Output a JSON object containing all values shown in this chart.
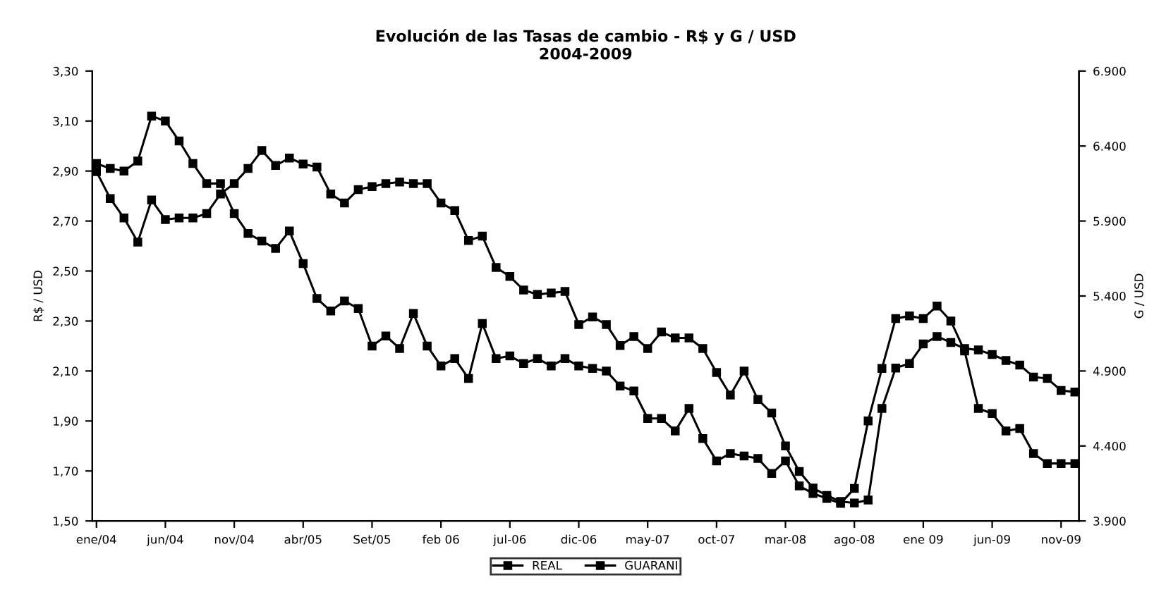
{
  "chart_data": {
    "type": "line",
    "title": "Evolución de las Tasas de cambio - R$ y G / USD\n2004-2009",
    "categories": [
      "ene/04",
      null,
      null,
      null,
      null,
      "jun/04",
      null,
      null,
      null,
      null,
      "nov/04",
      null,
      null,
      null,
      null,
      "abr/05",
      null,
      null,
      null,
      null,
      "Set/05",
      null,
      null,
      null,
      null,
      "feb 06",
      null,
      null,
      null,
      null,
      "jul-06",
      null,
      null,
      null,
      null,
      "dic-06",
      null,
      null,
      null,
      null,
      "may-07",
      null,
      null,
      null,
      null,
      "oct-07",
      null,
      null,
      null,
      null,
      "mar-08",
      null,
      null,
      null,
      null,
      "ago-08",
      null,
      null,
      null,
      null,
      "ene 09",
      null,
      null,
      null,
      null,
      "jun-09",
      null,
      null,
      null,
      null,
      "nov-09",
      null
    ],
    "series": [
      {
        "name": "REAL",
        "color": "#000000",
        "values": [
          2.93,
          2.91,
          2.9,
          2.94,
          3.12,
          3.1,
          3.02,
          2.93,
          2.85,
          2.85,
          2.73,
          2.65,
          2.62,
          2.59,
          2.66,
          2.53,
          2.39,
          2.34,
          2.38,
          2.35,
          2.2,
          2.24,
          2.19,
          2.33,
          2.2,
          2.12,
          2.15,
          2.07,
          2.29,
          2.15,
          2.16,
          2.13,
          2.15,
          2.12,
          2.15,
          2.12,
          2.11,
          2.1,
          2.04,
          2.02,
          1.91,
          1.91,
          1.86,
          1.95,
          1.83,
          1.74,
          1.77,
          1.76,
          1.75,
          1.69,
          1.74,
          1.64,
          1.61,
          1.59,
          1.57,
          1.63,
          1.9,
          2.11,
          2.31,
          2.32,
          2.31,
          2.36,
          2.3,
          2.18,
          1.95,
          1.93,
          1.86,
          1.87,
          1.77,
          1.73,
          1.73,
          1.73
        ]
      },
      {
        "name": "GUARANI",
        "color": "#000000",
        "axis": "y2",
        "values": [
          6230,
          6050,
          5920,
          5760,
          6040,
          5910,
          5920,
          5920,
          5950,
          6080,
          6150,
          6250,
          6370,
          6270,
          6320,
          6280,
          6260,
          6080,
          6020,
          6110,
          6130,
          6150,
          6160,
          6150,
          6150,
          6020,
          5970,
          5770,
          5800,
          5590,
          5530,
          5440,
          5410,
          5420,
          5430,
          5210,
          5260,
          5210,
          5070,
          5130,
          5050,
          5160,
          5120,
          5120,
          5050,
          4890,
          4740,
          4900,
          4710,
          4620,
          4400,
          4230,
          4120,
          4070,
          4030,
          4020,
          4040,
          4650,
          4920,
          4950,
          5080,
          5130,
          5090,
          5050,
          5040,
          5010,
          4970,
          4940,
          4860,
          4850,
          4770,
          4760
        ]
      }
    ],
    "ylabel": "R$ / USD",
    "y2label": "G / USD",
    "ylim": [
      1.5,
      3.3
    ],
    "yticks": [
      {
        "value": 1.5,
        "label": "1,50"
      },
      {
        "value": 1.7,
        "label": "1,70"
      },
      {
        "value": 1.9,
        "label": "1,90"
      },
      {
        "value": 2.1,
        "label": "2,10"
      },
      {
        "value": 2.3,
        "label": "2,30"
      },
      {
        "value": 2.5,
        "label": "2,50"
      },
      {
        "value": 2.7,
        "label": "2,70"
      },
      {
        "value": 2.9,
        "label": "2,90"
      },
      {
        "value": 3.1,
        "label": "3,10"
      },
      {
        "value": 3.3,
        "label": "3,30"
      }
    ],
    "y2lim": [
      3900,
      6900
    ],
    "y2ticks": [
      {
        "value": 3900,
        "label": "3.900"
      },
      {
        "value": 4400,
        "label": "4.400"
      },
      {
        "value": 4900,
        "label": "4.900"
      },
      {
        "value": 5400,
        "label": "5.400"
      },
      {
        "value": 5900,
        "label": "5.900"
      },
      {
        "value": 6400,
        "label": "6.400"
      },
      {
        "value": 6900,
        "label": "6.900"
      }
    ],
    "marker": "square",
    "line_style": "solid",
    "grid": false,
    "legend": "bottom"
  }
}
